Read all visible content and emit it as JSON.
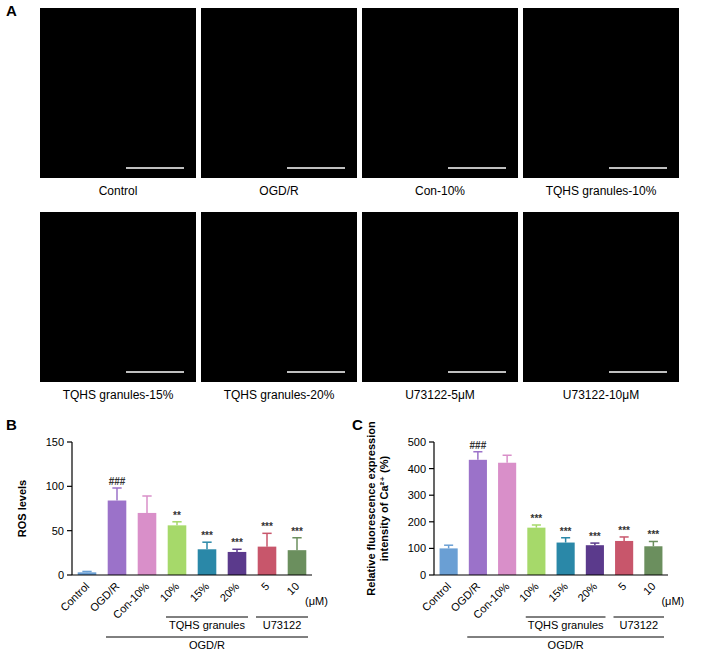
{
  "image_panel": {
    "label": "A",
    "images": [
      {
        "caption": "Control"
      },
      {
        "caption": "OGD/R"
      },
      {
        "caption": "Con-10%"
      },
      {
        "caption": "TQHS granules-10%"
      },
      {
        "caption": "TQHS granules-15%"
      },
      {
        "caption": "TQHS granules-20%"
      },
      {
        "caption": "U73122-5μM"
      },
      {
        "caption": "U73122-10μM"
      }
    ]
  },
  "chart_data": [
    {
      "type": "bar",
      "label": "B",
      "ylabel": "ROS levels",
      "categories": [
        "Control",
        "OGD/R",
        "Con-10%",
        "10%",
        "15%",
        "20%",
        "5",
        "10"
      ],
      "unit_label": "(μM)",
      "values": [
        3,
        84,
        70,
        56,
        29,
        26,
        32,
        28
      ],
      "errors": [
        1,
        14,
        19,
        4,
        8,
        3,
        15,
        14
      ],
      "colors": [
        "#6a9fd4",
        "#9b72c9",
        "#d98fc9",
        "#a6d96a",
        "#2a88a8",
        "#5b3a8c",
        "#c8566b",
        "#6b8f5e"
      ],
      "significance": [
        null,
        "###",
        null,
        "**",
        "***",
        "***",
        "***",
        "***"
      ],
      "groups": [
        {
          "label": "TQHS granules",
          "from": 3,
          "to": 5
        },
        {
          "label": "U73122",
          "from": 6,
          "to": 7
        },
        {
          "label": "OGD/R",
          "from": 1,
          "to": 7
        }
      ],
      "ylim": [
        0,
        150
      ],
      "yticks": [
        0,
        50,
        100,
        150
      ]
    },
    {
      "type": "bar",
      "label": "C",
      "ylabel": "Relative fluorescence expression intensity of Ca²⁺ (%)",
      "categories": [
        "Control",
        "OGD/R",
        "Con-10%",
        "10%",
        "15%",
        "20%",
        "5",
        "10"
      ],
      "unit_label": "(μM)",
      "values": [
        100,
        433,
        422,
        178,
        122,
        112,
        128,
        108
      ],
      "errors": [
        12,
        30,
        28,
        10,
        18,
        8,
        15,
        18
      ],
      "colors": [
        "#6a9fd4",
        "#9b72c9",
        "#d98fc9",
        "#a6d96a",
        "#2a88a8",
        "#5b3a8c",
        "#c8566b",
        "#6b8f5e"
      ],
      "significance": [
        null,
        "###",
        null,
        "***",
        "***",
        "***",
        "***",
        "***"
      ],
      "groups": [
        {
          "label": "TQHS granules",
          "from": 3,
          "to": 5
        },
        {
          "label": "U73122",
          "from": 6,
          "to": 7
        },
        {
          "label": "OGD/R",
          "from": 1,
          "to": 7
        }
      ],
      "ylim": [
        0,
        500
      ],
      "yticks": [
        0,
        100,
        200,
        300,
        400,
        500
      ]
    }
  ]
}
